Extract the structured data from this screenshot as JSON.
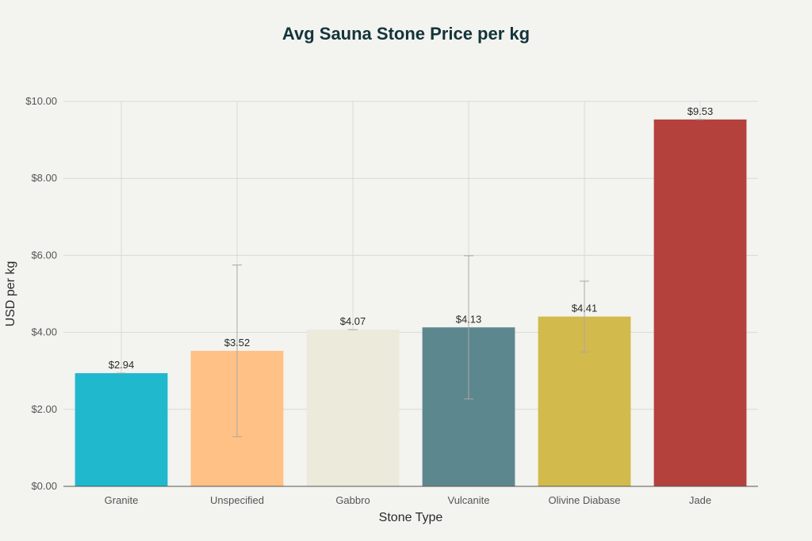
{
  "chart_data": {
    "type": "bar",
    "title": "Avg Sauna Stone Price per kg",
    "xlabel": "Stone Type",
    "ylabel": "USD per kg",
    "categories": [
      "Granite",
      "Unspecified",
      "Gabbro",
      "Vulcanite",
      "Olivine Diabase",
      "Jade"
    ],
    "values": [
      2.94,
      3.52,
      4.07,
      4.13,
      4.41,
      9.53
    ],
    "value_labels": [
      "$2.94",
      "$3.52",
      "$4.07",
      "$4.13",
      "$4.41",
      "$9.53"
    ],
    "error_low": [
      2.94,
      1.29,
      4.07,
      2.27,
      3.49,
      9.53
    ],
    "error_high": [
      2.94,
      5.75,
      4.07,
      5.99,
      5.33,
      9.53
    ],
    "colors": [
      "#1fb8cd",
      "#ffc185",
      "#eceadb",
      "#5d878f",
      "#d2ba4c",
      "#b4413c"
    ],
    "ylim": [
      0,
      10
    ],
    "yticks": [
      0,
      2,
      4,
      6,
      8,
      10
    ],
    "ytick_labels": [
      "$0.00",
      "$2.00",
      "$4.00",
      "$6.00",
      "$8.00",
      "$10.00"
    ],
    "grid": true,
    "legend": "none"
  }
}
